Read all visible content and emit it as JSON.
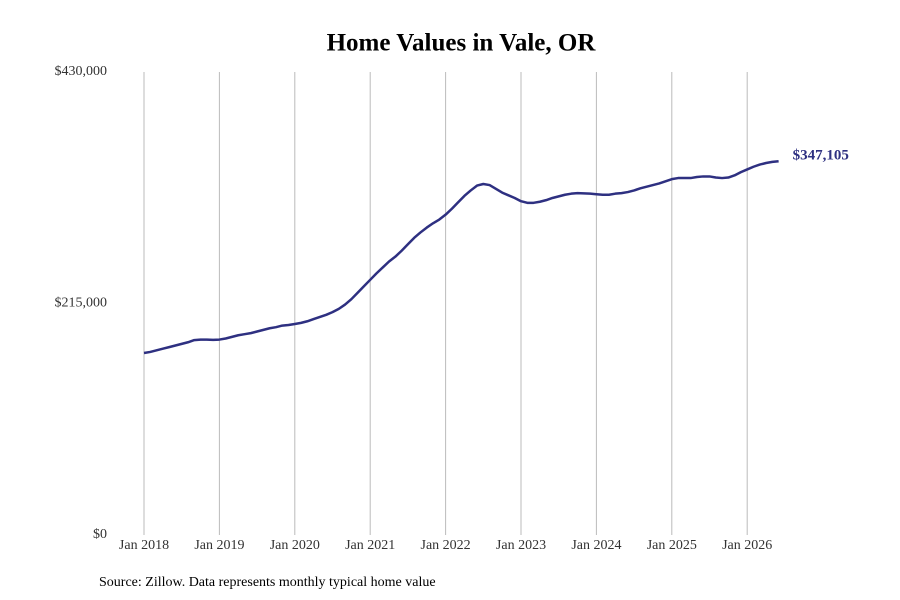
{
  "chart_data": {
    "type": "line",
    "title": "Home Values in Vale, OR",
    "source": "Source: Zillow. Data represents monthly typical home value",
    "x": [
      "2018-01",
      "2018-02",
      "2018-03",
      "2018-04",
      "2018-05",
      "2018-06",
      "2018-07",
      "2018-08",
      "2018-09",
      "2018-10",
      "2018-11",
      "2018-12",
      "2019-01",
      "2019-02",
      "2019-03",
      "2019-04",
      "2019-05",
      "2019-06",
      "2019-07",
      "2019-08",
      "2019-09",
      "2019-10",
      "2019-11",
      "2019-12",
      "2020-01",
      "2020-02",
      "2020-03",
      "2020-04",
      "2020-05",
      "2020-06",
      "2020-07",
      "2020-08",
      "2020-09",
      "2020-10",
      "2020-11",
      "2020-12",
      "2021-01",
      "2021-02",
      "2021-03",
      "2021-04",
      "2021-05",
      "2021-06",
      "2021-07",
      "2021-08",
      "2021-09",
      "2021-10",
      "2021-11",
      "2021-12",
      "2022-01",
      "2022-02",
      "2022-03",
      "2022-04",
      "2022-05",
      "2022-06",
      "2022-07",
      "2022-08",
      "2022-09",
      "2022-10",
      "2022-11",
      "2022-12",
      "2023-01",
      "2023-02",
      "2023-03",
      "2023-04",
      "2023-05",
      "2023-06",
      "2023-07",
      "2023-08",
      "2023-09",
      "2023-10",
      "2023-11",
      "2023-12",
      "2024-01",
      "2024-02",
      "2024-03",
      "2024-04",
      "2024-05",
      "2024-06",
      "2024-07",
      "2024-08",
      "2024-09",
      "2024-10",
      "2024-11",
      "2024-12",
      "2025-01",
      "2025-02",
      "2025-03",
      "2025-04",
      "2025-05",
      "2025-06",
      "2025-07",
      "2025-08",
      "2025-09",
      "2025-10",
      "2025-11",
      "2025-12",
      "2026-01",
      "2026-02",
      "2026-03",
      "2026-04",
      "2026-05",
      "2026-06"
    ],
    "series": [
      {
        "name": "Home Values",
        "color": "#2e3081",
        "values": [
          169000,
          170000,
          171500,
          173000,
          174500,
          176000,
          177500,
          179000,
          181000,
          181500,
          181500,
          181200,
          181500,
          182500,
          184000,
          185500,
          186500,
          187500,
          189000,
          190500,
          192000,
          193000,
          194500,
          195000,
          196000,
          197000,
          198500,
          200500,
          202500,
          204500,
          207000,
          210000,
          214000,
          219000,
          225000,
          231000,
          237000,
          243000,
          248500,
          254000,
          258500,
          264000,
          270000,
          276000,
          281000,
          285500,
          289500,
          293000,
          297500,
          303000,
          309000,
          315000,
          320000,
          324500,
          326000,
          325000,
          321500,
          318000,
          315500,
          313000,
          310000,
          308500,
          308500,
          309500,
          311000,
          313000,
          314500,
          316000,
          317000,
          317500,
          317300,
          317000,
          316500,
          316000,
          316000,
          317000,
          317500,
          318500,
          320000,
          322000,
          323500,
          325000,
          326500,
          328500,
          330500,
          331500,
          331500,
          331500,
          332500,
          333000,
          333000,
          332000,
          331500,
          332000,
          334000,
          337000,
          339500,
          342000,
          344000,
          345500,
          346500,
          347105
        ],
        "value_labels": [
          null,
          null,
          null,
          null,
          null,
          null,
          null,
          null,
          null,
          null,
          null,
          null,
          null,
          null,
          null,
          null,
          null,
          null,
          null,
          null,
          null,
          null,
          null,
          null,
          null,
          null,
          null,
          null,
          null,
          null,
          null,
          null,
          null,
          null,
          null,
          null,
          null,
          null,
          null,
          null,
          null,
          null,
          null,
          null,
          null,
          null,
          null,
          null,
          null,
          null,
          null,
          null,
          null,
          null,
          null,
          null,
          null,
          null,
          null,
          null,
          null,
          null,
          null,
          null,
          null,
          null,
          null,
          null,
          null,
          null,
          null,
          null,
          null,
          null,
          null,
          null,
          null,
          null,
          null,
          null,
          null,
          null,
          null,
          null,
          null,
          null,
          null,
          null,
          null,
          null,
          null,
          null,
          null,
          null,
          null,
          null,
          null,
          null,
          null,
          null,
          null,
          "$347,105"
        ]
      }
    ],
    "xticks": [
      {
        "value": "2018-01",
        "label": "Jan 2018"
      },
      {
        "value": "2019-01",
        "label": "Jan 2019"
      },
      {
        "value": "2020-01",
        "label": "Jan 2020"
      },
      {
        "value": "2021-01",
        "label": "Jan 2021"
      },
      {
        "value": "2022-01",
        "label": "Jan 2022"
      },
      {
        "value": "2023-01",
        "label": "Jan 2023"
      },
      {
        "value": "2024-01",
        "label": "Jan 2024"
      },
      {
        "value": "2025-01",
        "label": "Jan 2025"
      },
      {
        "value": "2026-01",
        "label": "Jan 2026"
      }
    ],
    "ylim": [
      0,
      430000
    ],
    "yticks": [
      {
        "value": 0,
        "label": "$0"
      },
      {
        "value": 215000,
        "label": "$215,000"
      },
      {
        "value": 430000,
        "label": "$430,000"
      }
    ],
    "grid": "x"
  }
}
